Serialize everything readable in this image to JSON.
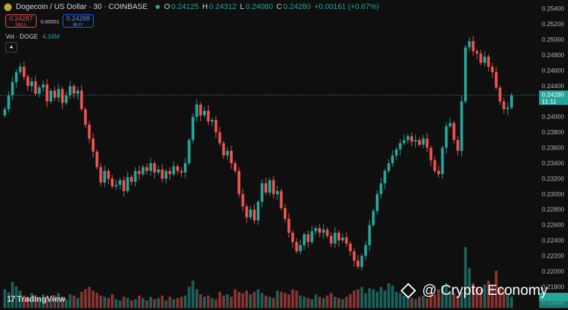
{
  "header": {
    "title": "Dogecoin / US Dollar · 30 · COINBASE",
    "ohlc": {
      "o_label": "O",
      "o": "0.24125",
      "h_label": "H",
      "h": "0.24312",
      "l_label": "L",
      "l": "0.24080",
      "c_label": "C",
      "c": "0.24280",
      "change": "+0.00161 (+0.67%)"
    }
  },
  "trade": {
    "sell_price": "0.24287",
    "sell_label": "SELL",
    "spread": "0.00001",
    "buy_price": "0.24288",
    "buy_label": "BUY"
  },
  "volume_legend": {
    "label": "Vol · DOGE",
    "value": "4.34M"
  },
  "price_tag": {
    "price": "0.24280",
    "countdown": "11:11"
  },
  "branding": {
    "tradingview": "TradingView",
    "watermark": "@ Crypto Economy"
  },
  "colors": {
    "up": "#26a69a",
    "down": "#ef5350",
    "bg": "#0f0f0f",
    "axis_text": "#b2b5be"
  },
  "chart_data": {
    "type": "candlestick",
    "yaxis_ticks": [
      "0.25400",
      "0.25200",
      "0.25000",
      "0.24800",
      "0.24600",
      "0.24400",
      "0.24200",
      "0.24000",
      "0.23800",
      "0.23600",
      "0.23400",
      "0.23200",
      "0.23000",
      "0.22800",
      "0.22600",
      "0.22400",
      "0.22200",
      "0.22000",
      "0.21800",
      "0.21600"
    ],
    "ylim": [
      0.2158,
      0.2546
    ],
    "last_price": 0.2428,
    "closes": [
      0.241,
      0.2428,
      0.2445,
      0.2458,
      0.2465,
      0.2452,
      0.244,
      0.2446,
      0.243,
      0.2438,
      0.2442,
      0.242,
      0.2434,
      0.2425,
      0.2436,
      0.2418,
      0.2428,
      0.244,
      0.243,
      0.2434,
      0.241,
      0.239,
      0.2372,
      0.2355,
      0.2335,
      0.2315,
      0.233,
      0.232,
      0.231,
      0.2312,
      0.2318,
      0.2304,
      0.2322,
      0.2316,
      0.233,
      0.2326,
      0.2335,
      0.233,
      0.234,
      0.2328,
      0.2332,
      0.232,
      0.233,
      0.2326,
      0.2336,
      0.233,
      0.2328,
      0.234,
      0.237,
      0.24,
      0.2416,
      0.2402,
      0.2408,
      0.2394,
      0.2396,
      0.238,
      0.2366,
      0.235,
      0.2356,
      0.234,
      0.233,
      0.23,
      0.2284,
      0.227,
      0.228,
      0.2266,
      0.229,
      0.2314,
      0.2302,
      0.2318,
      0.23,
      0.2304,
      0.2282,
      0.2268,
      0.225,
      0.2238,
      0.2226,
      0.2234,
      0.2248,
      0.2238,
      0.2252,
      0.2256,
      0.225,
      0.2254,
      0.2246,
      0.2236,
      0.225,
      0.224,
      0.2244,
      0.2236,
      0.2226,
      0.2214,
      0.2206,
      0.222,
      0.2234,
      0.226,
      0.2278,
      0.23,
      0.2314,
      0.233,
      0.234,
      0.235,
      0.2358,
      0.2366,
      0.237,
      0.2375,
      0.2368,
      0.237,
      0.2364,
      0.2372,
      0.236,
      0.2344,
      0.233,
      0.2326,
      0.236,
      0.2388,
      0.2392,
      0.237,
      0.2356,
      0.242,
      0.249,
      0.2498,
      0.2485,
      0.2482,
      0.247,
      0.2478,
      0.2465,
      0.2458,
      0.2438,
      0.242,
      0.241,
      0.2412,
      0.2428
    ],
    "volumes": [
      30,
      25,
      42,
      35,
      28,
      20,
      18,
      24,
      20,
      15,
      22,
      18,
      16,
      20,
      24,
      18,
      14,
      22,
      20,
      16,
      26,
      30,
      34,
      28,
      24,
      20,
      18,
      16,
      22,
      14,
      12,
      18,
      16,
      12,
      14,
      20,
      16,
      12,
      18,
      14,
      16,
      20,
      12,
      18,
      14,
      16,
      18,
      20,
      34,
      44,
      30,
      22,
      18,
      20,
      16,
      14,
      26,
      20,
      22,
      18,
      30,
      26,
      24,
      28,
      22,
      26,
      30,
      24,
      20,
      18,
      16,
      28,
      26,
      24,
      22,
      30,
      28,
      20,
      18,
      16,
      14,
      22,
      18,
      16,
      20,
      24,
      18,
      16,
      14,
      18,
      22,
      28,
      30,
      34,
      24,
      32,
      30,
      26,
      34,
      28,
      40,
      36,
      26,
      24,
      20,
      18,
      16,
      14,
      18,
      20,
      16,
      24,
      22,
      30,
      36,
      40,
      28,
      24,
      20,
      26,
      98,
      64,
      40,
      34,
      30,
      38,
      44,
      36,
      60,
      34,
      30,
      22,
      18
    ]
  }
}
